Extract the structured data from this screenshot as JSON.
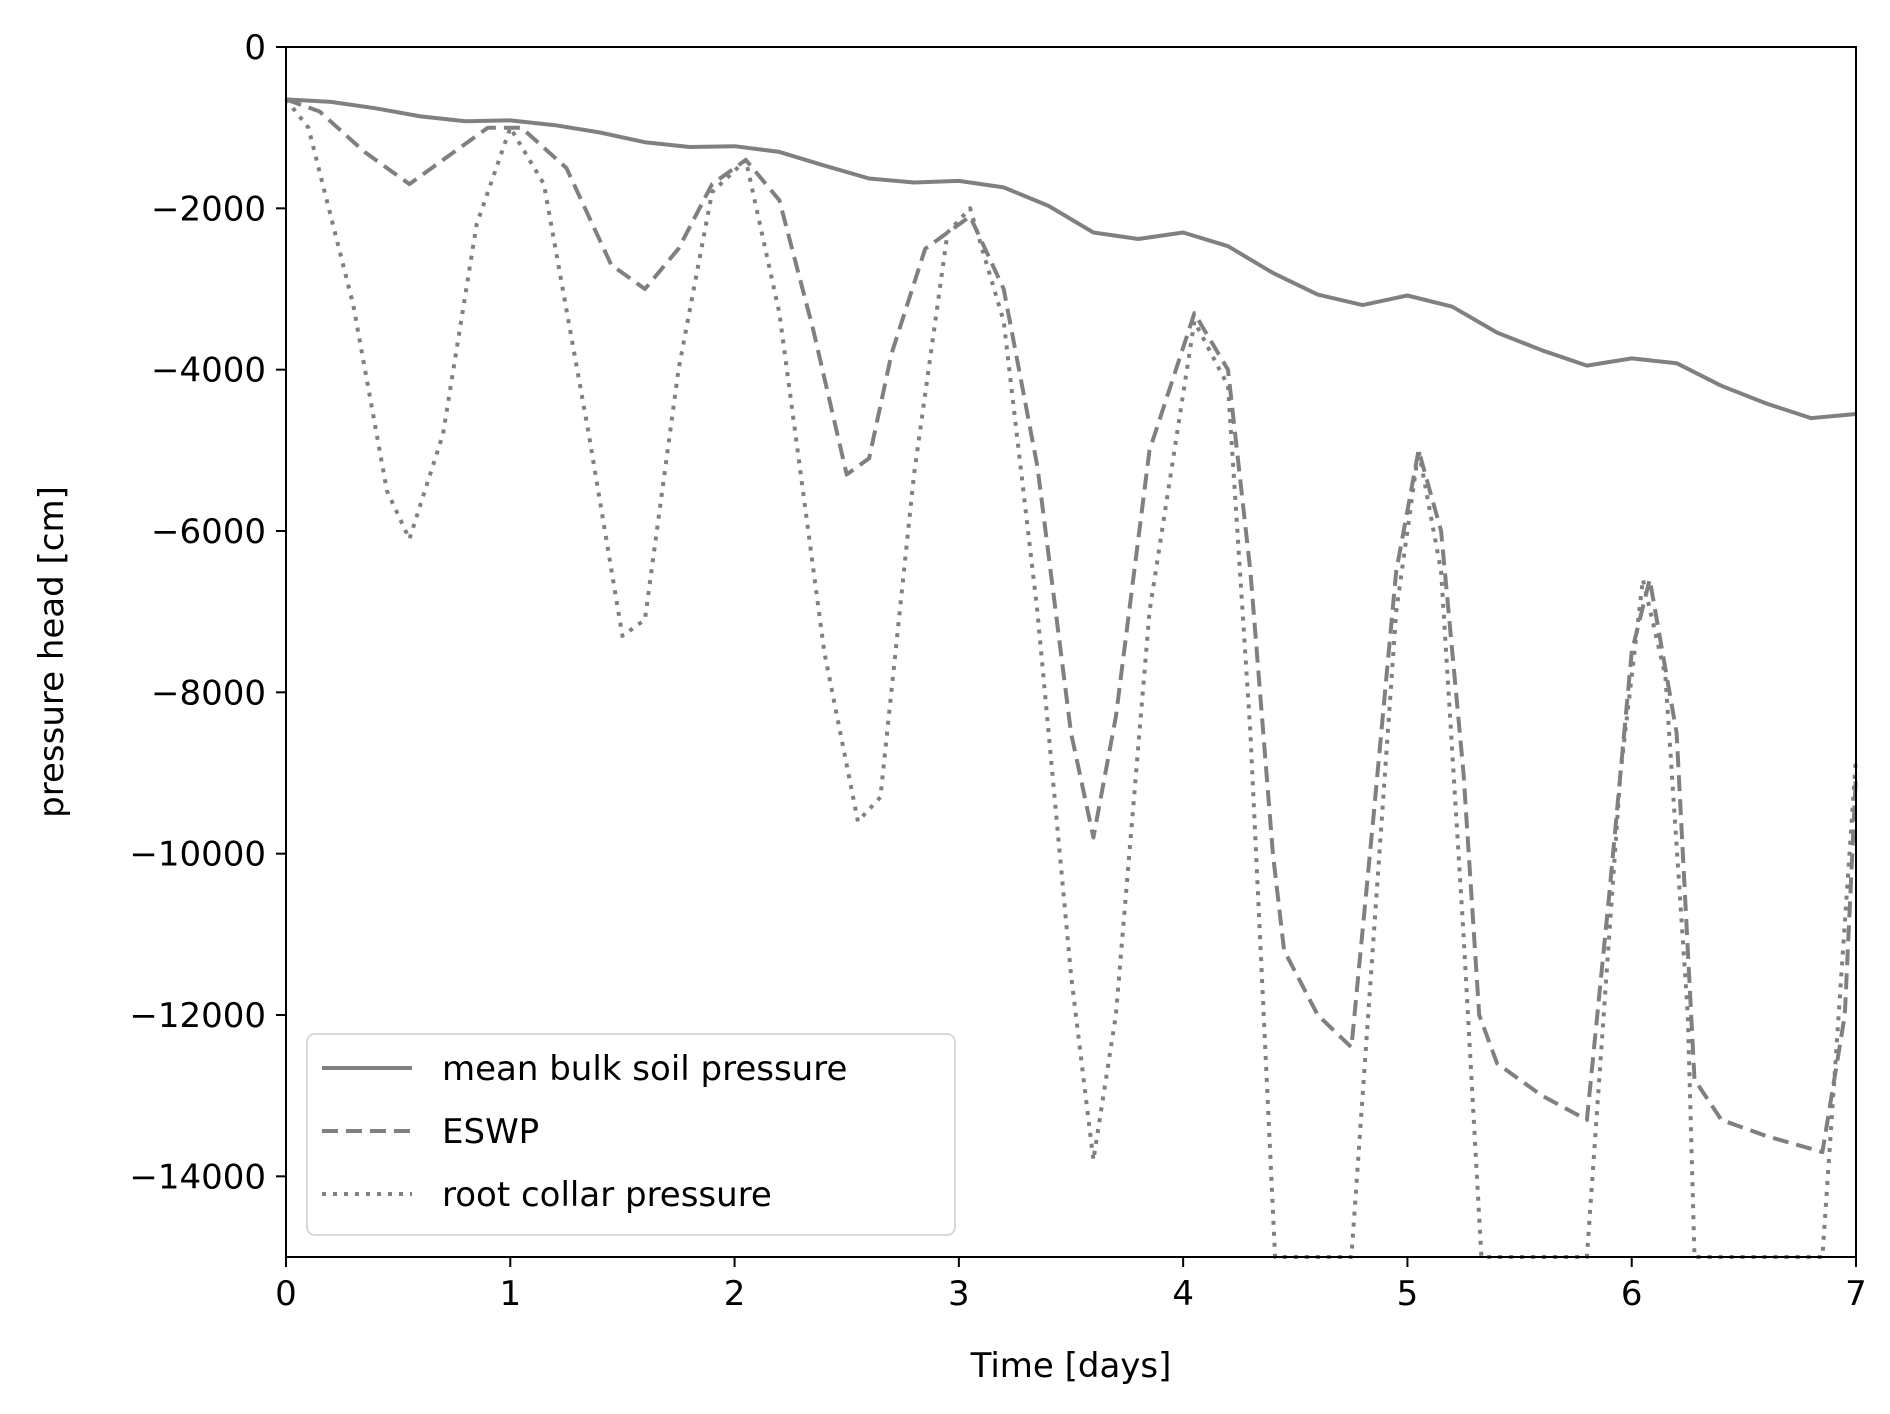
{
  "chart_data": {
    "type": "line",
    "title": "",
    "xlabel": "Time [days]",
    "ylabel": "pressure head [cm]",
    "xlim": [
      0,
      7
    ],
    "ylim": [
      -15000,
      0
    ],
    "x_ticks": [
      0,
      1,
      2,
      3,
      4,
      5,
      6,
      7
    ],
    "y_ticks": [
      0,
      -2000,
      -4000,
      -6000,
      -8000,
      -10000,
      -12000,
      -14000
    ],
    "x_tick_labels": [
      "0",
      "1",
      "2",
      "3",
      "4",
      "5",
      "6",
      "7"
    ],
    "y_tick_labels": [
      "0",
      "−2000",
      "−4000",
      "−6000",
      "−8000",
      "−10000",
      "−12000",
      "−14000"
    ],
    "grid": false,
    "legend_position": "lower-left",
    "series": [
      {
        "name": "mean bulk soil pressure",
        "style": "solid",
        "color": "#808080",
        "x": [
          0,
          0.2,
          0.4,
          0.6,
          0.8,
          1.0,
          1.2,
          1.4,
          1.6,
          1.8,
          2.0,
          2.2,
          2.4,
          2.6,
          2.8,
          3.0,
          3.2,
          3.4,
          3.6,
          3.8,
          4.0,
          4.2,
          4.4,
          4.6,
          4.8,
          5.0,
          5.2,
          5.4,
          5.6,
          5.8,
          6.0,
          6.2,
          6.4,
          6.6,
          6.8,
          7.0
        ],
        "y": [
          -650,
          -680,
          -760,
          -860,
          -920,
          -910,
          -970,
          -1060,
          -1180,
          -1240,
          -1230,
          -1300,
          -1470,
          -1630,
          -1680,
          -1660,
          -1740,
          -1970,
          -2300,
          -2380,
          -2300,
          -2470,
          -2800,
          -3070,
          -3200,
          -3080,
          -3220,
          -3540,
          -3760,
          -3950,
          -3860,
          -3920,
          -4200,
          -4420,
          -4600,
          -4550
        ]
      },
      {
        "name": "ESWP",
        "style": "dashed",
        "color": "#808080",
        "x": [
          0,
          0.15,
          0.35,
          0.55,
          0.75,
          0.9,
          1.05,
          1.25,
          1.45,
          1.6,
          1.75,
          1.9,
          2.05,
          2.2,
          2.35,
          2.5,
          2.6,
          2.7,
          2.85,
          3.05,
          3.2,
          3.35,
          3.5,
          3.6,
          3.7,
          3.85,
          4.05,
          4.2,
          4.3,
          4.4,
          4.45,
          4.6,
          4.75,
          4.85,
          4.95,
          5.05,
          5.15,
          5.25,
          5.32,
          5.4,
          5.6,
          5.8,
          5.9,
          6.0,
          6.08,
          6.2,
          6.28,
          6.4,
          6.6,
          6.85,
          6.95,
          7.0
        ],
        "y": [
          -650,
          -800,
          -1300,
          -1700,
          -1300,
          -1000,
          -1000,
          -1500,
          -2700,
          -3000,
          -2500,
          -1700,
          -1400,
          -1900,
          -3500,
          -5300,
          -5100,
          -3800,
          -2500,
          -2100,
          -3000,
          -5200,
          -8500,
          -9800,
          -8300,
          -5000,
          -3300,
          -4000,
          -6500,
          -10000,
          -11200,
          -12000,
          -12400,
          -9500,
          -6500,
          -5000,
          -6000,
          -9000,
          -12000,
          -12600,
          -13000,
          -13300,
          -10500,
          -7500,
          -6600,
          -8500,
          -12800,
          -13300,
          -13500,
          -13700,
          -12000,
          -9000
        ]
      },
      {
        "name": "root collar pressure",
        "style": "dotted",
        "color": "#808080",
        "x": [
          0,
          0.1,
          0.3,
          0.45,
          0.55,
          0.7,
          0.85,
          1.0,
          1.15,
          1.35,
          1.5,
          1.6,
          1.75,
          1.9,
          2.05,
          2.2,
          2.4,
          2.55,
          2.65,
          2.8,
          2.95,
          3.05,
          3.2,
          3.35,
          3.5,
          3.6,
          3.7,
          3.85,
          4.05,
          4.2,
          4.3,
          4.41,
          4.5,
          4.6,
          4.75,
          4.85,
          4.95,
          5.05,
          5.15,
          5.25,
          5.33,
          5.5,
          5.65,
          5.8,
          5.95,
          6.05,
          6.15,
          6.25,
          6.28,
          6.5,
          6.7,
          6.85,
          7.0
        ],
        "y": [
          -650,
          -1000,
          -3200,
          -5500,
          -6100,
          -4800,
          -2200,
          -1000,
          -1700,
          -4800,
          -7300,
          -7100,
          -4000,
          -1800,
          -1400,
          -3300,
          -7500,
          -9600,
          -9300,
          -5300,
          -2300,
          -2000,
          -3400,
          -7000,
          -11500,
          -13800,
          -12000,
          -7000,
          -3400,
          -4200,
          -8500,
          -15000,
          -15000,
          -15000,
          -15000,
          -11000,
          -7000,
          -5000,
          -6500,
          -11000,
          -15000,
          -15000,
          -15000,
          -15000,
          -9000,
          -6600,
          -7800,
          -12000,
          -15000,
          -15000,
          -15000,
          -15000,
          -8800
        ]
      }
    ]
  }
}
